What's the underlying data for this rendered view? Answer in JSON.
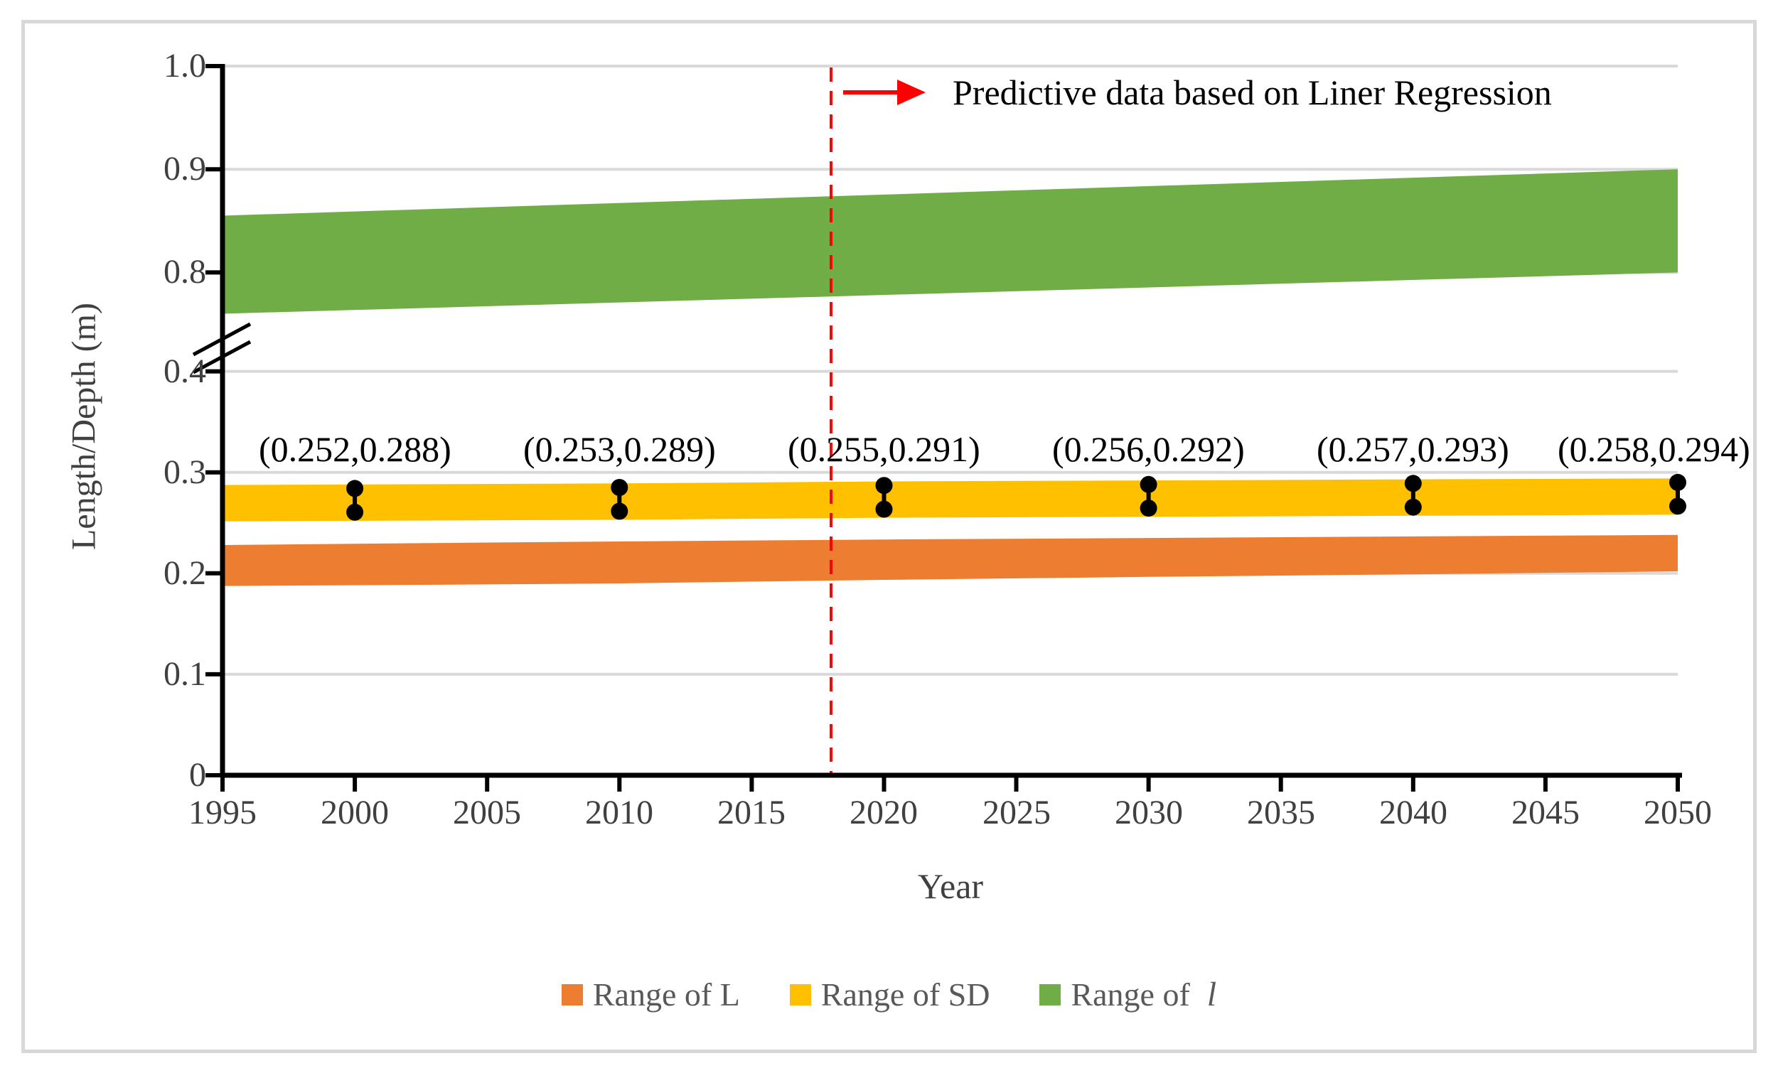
{
  "chart_data": {
    "type": "area",
    "annotation": "Predictive data based on Liner Regression",
    "xlabel": "Year",
    "ylabel": "Length/Depth (m)",
    "x_ticks": [
      "1995",
      "2000",
      "2005",
      "2010",
      "2015",
      "2020",
      "2025",
      "2030",
      "2035",
      "2040",
      "2045",
      "2050"
    ],
    "y_ticks": [
      {
        "label": "1.0",
        "value": 1.0,
        "segment": "upper"
      },
      {
        "label": "0.9",
        "value": 0.9,
        "segment": "upper"
      },
      {
        "label": "0.8",
        "value": 0.8,
        "segment": "upper"
      },
      {
        "label": "0.4",
        "value": 0.4,
        "segment": "lower"
      },
      {
        "label": "0.3",
        "value": 0.3,
        "segment": "lower"
      },
      {
        "label": "0.2",
        "value": 0.2,
        "segment": "lower"
      },
      {
        "label": "0.1",
        "value": 0.1,
        "segment": "lower"
      },
      {
        "label": "0",
        "value": 0.0,
        "segment": "lower"
      }
    ],
    "x_range": [
      1995,
      2050
    ],
    "axis_break_between": [
      0.4,
      0.8
    ],
    "prediction_line_year": 2018,
    "series": [
      {
        "name": "Range of L",
        "color": "#ED7D31",
        "segment": "lower",
        "years": [
          1995,
          2005,
          2010,
          2020,
          2030,
          2040,
          2050
        ],
        "low": [
          0.1875,
          0.189,
          0.19,
          0.1935,
          0.1965,
          0.199,
          0.202
        ],
        "high": [
          0.228,
          0.2305,
          0.2315,
          0.2335,
          0.235,
          0.2365,
          0.238
        ]
      },
      {
        "name": "Range of SD",
        "color": "#FFC000",
        "segment": "lower",
        "years": [
          1995,
          2000,
          2010,
          2020,
          2030,
          2040,
          2050
        ],
        "low": [
          0.2515,
          0.252,
          0.253,
          0.255,
          0.256,
          0.257,
          0.258
        ],
        "high": [
          0.2875,
          0.288,
          0.289,
          0.291,
          0.292,
          0.293,
          0.294
        ]
      },
      {
        "name": "Range of l",
        "color": "#70AD47",
        "segment": "upper",
        "years": [
          1995,
          2050
        ],
        "low": [
          0.76,
          0.8
        ],
        "high": [
          0.855,
          0.9
        ]
      }
    ],
    "points": [
      {
        "year": 2000,
        "low": 0.252,
        "high": 0.288,
        "label": "(0.252,0.288)"
      },
      {
        "year": 2010,
        "low": 0.253,
        "high": 0.289,
        "label": "(0.253,0.289)"
      },
      {
        "year": 2020,
        "low": 0.255,
        "high": 0.291,
        "label": "(0.255,0.291)"
      },
      {
        "year": 2030,
        "low": 0.256,
        "high": 0.292,
        "label": "(0.256,0.292)"
      },
      {
        "year": 2040,
        "low": 0.257,
        "high": 0.293,
        "label": "(0.257,0.293)"
      },
      {
        "year": 2050,
        "low": 0.258,
        "high": 0.294,
        "label": "(0.258,0.294)"
      }
    ],
    "legend": [
      {
        "label": "Range of L",
        "color": "#ED7D31",
        "symbol_italic": ""
      },
      {
        "label": "Range of SD",
        "color": "#FFC000",
        "symbol_italic": ""
      },
      {
        "label": "Range of",
        "color": "#70AD47",
        "symbol_italic": "l"
      }
    ],
    "colors": {
      "prediction_red": "#FF0000",
      "grid": "#D9D9D9",
      "axis": "#000000",
      "tick_text": "#404040",
      "legend_text": "#595959",
      "marker": "#000000"
    }
  }
}
